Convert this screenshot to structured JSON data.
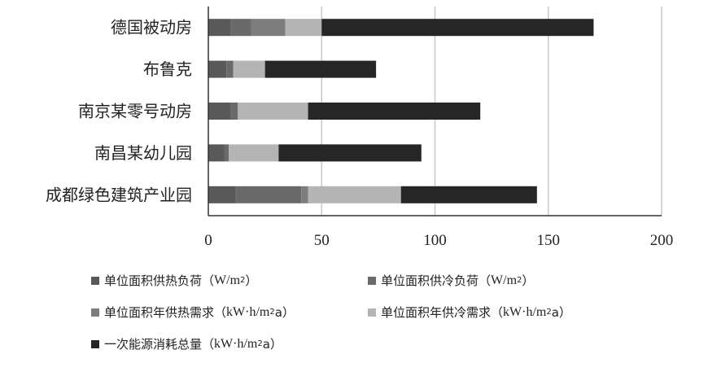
{
  "chart_data": {
    "type": "bar",
    "orientation": "horizontal",
    "stacked": true,
    "categories": [
      "德国被动房",
      "布鲁克",
      "南京某零号动房",
      "南昌某幼儿园",
      "成都绿色建筑产业园"
    ],
    "xlim": [
      0,
      200
    ],
    "xticks": [
      "0",
      "50",
      "100",
      "150",
      "200"
    ],
    "grid": "vertical",
    "legend_position": "bottom",
    "series": [
      {
        "name": "单位面积供热负荷（W/m2）",
        "color": "#595959",
        "values": [
          10,
          8,
          10,
          7,
          12
        ]
      },
      {
        "name": "单位面积供冷负荷（W/m2）",
        "color": "#6a6a6a",
        "values": [
          9,
          3,
          3,
          2,
          29
        ]
      },
      {
        "name": "单位面积年供热需求（kW·h/m2a）",
        "color": "#7d7d7d",
        "values": [
          15,
          0,
          0,
          0,
          3
        ]
      },
      {
        "name": "单位面积年供冷需求（kW·h/m2a）",
        "color": "#b4b4b4",
        "values": [
          16,
          14,
          31,
          22,
          41
        ]
      },
      {
        "name": "一次能源消耗总量（kW·h/m2a）",
        "color": "#262626",
        "values": [
          120,
          49,
          76,
          63,
          60
        ]
      }
    ]
  },
  "legend": [
    {
      "label": "单位面积供热负荷（",
      "unit": "W/m",
      "sup": "2",
      "tail": "）",
      "color": "#595959"
    },
    {
      "label": "单位面积供冷负荷（",
      "unit": "W/m",
      "sup": "2",
      "tail": "）",
      "color": "#6a6a6a"
    },
    {
      "label": "单位面积年供热需求（",
      "unit": "kW·h/m",
      "sup": "2",
      "tail": "a）",
      "color": "#7d7d7d"
    },
    {
      "label": "单位面积年供冷需求（",
      "unit": "kW·h/m",
      "sup": "2",
      "tail": "a）",
      "color": "#b4b4b4"
    },
    {
      "label": "一次能源消耗总量（",
      "unit": "kW·h/m",
      "sup": "2",
      "tail": "a）",
      "color": "#262626"
    }
  ]
}
